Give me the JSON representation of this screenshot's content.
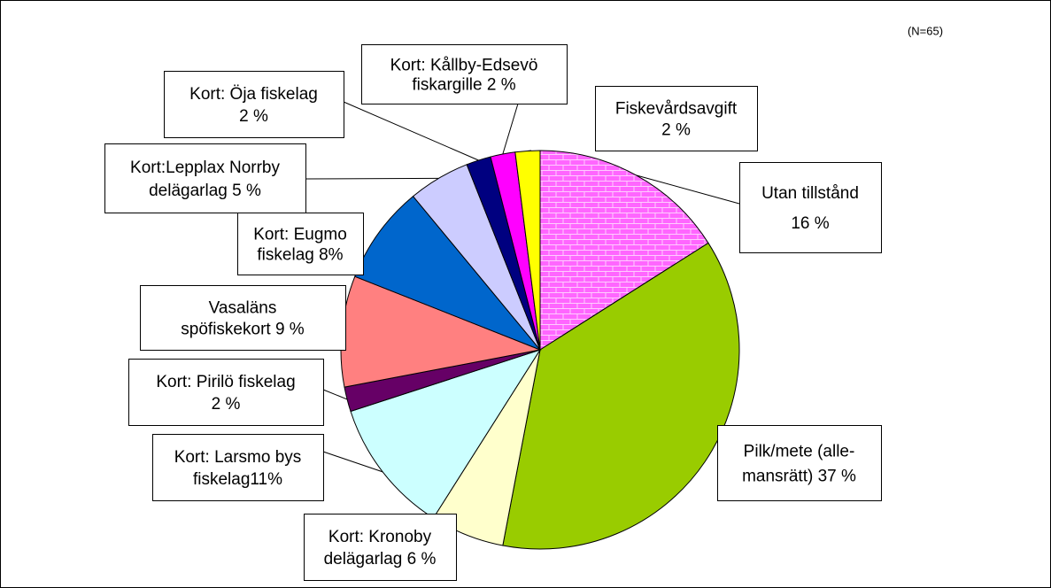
{
  "chart_data": {
    "type": "pie",
    "note": "(N=65)",
    "labels": [
      [
        "Utan tillstånd",
        "16 %"
      ],
      [
        "Pilk/mete (alle-",
        "mansrätt) 37 %"
      ],
      [
        "Kort: Kronoby",
        "delägarlag 6 %"
      ],
      [
        "Kort: Larsmo bys",
        "fiskelag11%"
      ],
      [
        "Kort: Pirilö fiskelag",
        "2 %"
      ],
      [
        "Vasaläns",
        "spöfiskekort 9 %"
      ],
      [
        "Kort: Eugmo",
        "fiskelag  8%"
      ],
      [
        "Kort:Lepplax Norrby",
        "delägarlag 5 %"
      ],
      [
        "Kort: Öja fiskelag",
        "2 %"
      ],
      [
        "Kort: Kållby-Edsevö",
        "fiskargille 2 %"
      ],
      [
        "Fiskevårdsavgift",
        "2 %"
      ]
    ],
    "values": [
      16,
      37,
      6,
      11,
      2,
      9,
      8,
      5,
      2,
      2,
      2
    ],
    "colors": [
      "#ff66ff",
      "#99cc00",
      "#ffffcc",
      "#ccffff",
      "#660066",
      "#ff8080",
      "#0066cc",
      "#ccccff",
      "#000080",
      "#ff00ff",
      "#ffff00"
    ],
    "start_angle": 90,
    "direction": "clockwise"
  }
}
